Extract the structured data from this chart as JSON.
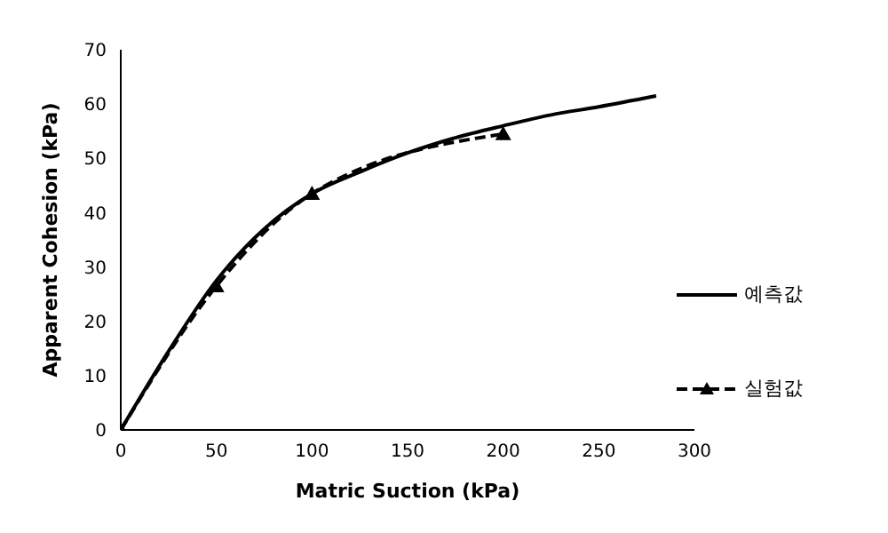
{
  "chart_data": {
    "type": "line",
    "xlabel": "Matric Suction (kPa)",
    "ylabel": "Apparent Cohesion (kPa)",
    "xlim": [
      0,
      300
    ],
    "xticks": [
      0,
      50,
      100,
      150,
      200,
      250,
      300
    ],
    "ylim": [
      0,
      70
    ],
    "yticks": [
      0,
      10,
      20,
      30,
      40,
      50,
      60,
      70
    ],
    "grid": false,
    "legend": "right",
    "series": [
      {
        "name": "예측값",
        "color": "#000000",
        "line_style": "solid",
        "marker": "none",
        "x": [
          0,
          25,
          50,
          75,
          100,
          125,
          150,
          175,
          200,
          225,
          250,
          280
        ],
        "values": [
          0,
          14.5,
          27.5,
          37,
          43.5,
          47.5,
          51,
          53.8,
          56,
          58,
          59.5,
          61.5
        ]
      },
      {
        "name": "실험값",
        "color": "#000000",
        "line_style": "dashed",
        "marker": "triangle",
        "x": [
          0,
          50,
          100,
          200
        ],
        "values": [
          0,
          26.5,
          43.5,
          54.5
        ]
      }
    ]
  }
}
